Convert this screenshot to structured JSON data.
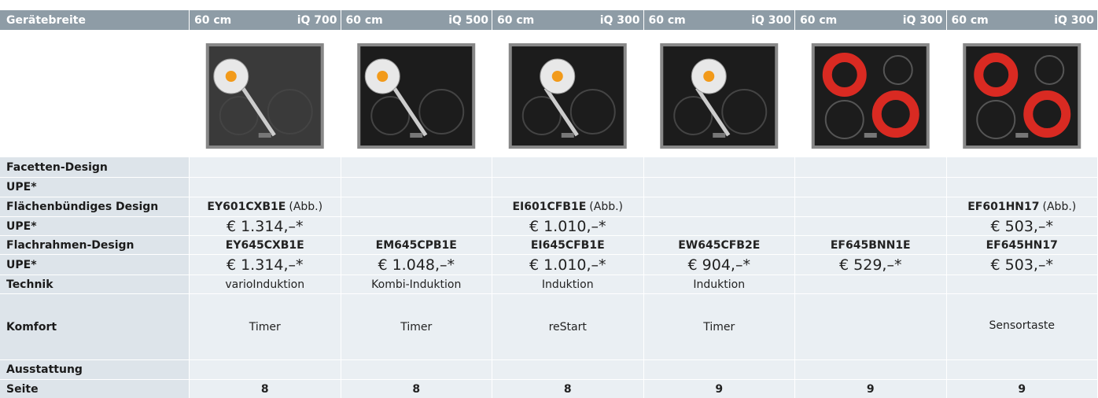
{
  "header": {
    "label": "Gerätebreite",
    "columns": [
      {
        "width": "60 cm",
        "series": "iQ 700"
      },
      {
        "width": "60 cm",
        "series": "iQ 500"
      },
      {
        "width": "60 cm",
        "series": "iQ 300"
      },
      {
        "width": "60 cm",
        "series": "iQ 300"
      },
      {
        "width": "60 cm",
        "series": "iQ 300"
      },
      {
        "width": "60 cm",
        "series": "iQ 300"
      }
    ]
  },
  "rows": [
    {
      "label": "Facetten-Design",
      "cells": [
        null,
        null,
        null,
        null,
        null,
        null
      ]
    },
    {
      "label": "UPE*",
      "cells": [
        null,
        null,
        null,
        null,
        null,
        null
      ]
    },
    {
      "label": "Flächenbündiges Design",
      "cells": [
        {
          "model": "EY601CXB1E",
          "note": "(Abb.)"
        },
        null,
        {
          "model": "EI601CFB1E",
          "note": "(Abb.)"
        },
        null,
        null,
        {
          "model": "EF601HN17",
          "note": "(Abb.)"
        }
      ]
    },
    {
      "label": "UPE*",
      "cells": [
        "€ 1.314,–*",
        null,
        "€ 1.010,–*",
        null,
        null,
        "€ 503,–*"
      ]
    },
    {
      "label": "Flachrahmen-Design",
      "cells": [
        "EY645CXB1E",
        "EM645CPB1E",
        "EI645CFB1E",
        "EW645CFB2E",
        "EF645BNN1E",
        "EF645HN17"
      ]
    },
    {
      "label": "UPE*",
      "cells": [
        "€ 1.314,–*",
        "€ 1.048,–*",
        "€ 1.010,–*",
        "€ 904,–*",
        "€ 529,–*",
        "€ 503,–*"
      ]
    },
    {
      "label": "Technik",
      "cells": [
        "varioInduktion",
        "Kombi-Induktion",
        "Induktion",
        "Induktion",
        null,
        null
      ]
    },
    {
      "label": "Komfort",
      "cells": [
        "Timer",
        "Timer",
        "reStart",
        "Timer",
        null,
        "Sensortaste"
      ]
    },
    {
      "label": "Ausstattung",
      "cells": [
        null,
        null,
        null,
        null,
        null,
        null
      ]
    },
    {
      "label": "Seite",
      "cells": [
        "8",
        "8",
        "8",
        "9",
        "9",
        "9"
      ]
    }
  ]
}
